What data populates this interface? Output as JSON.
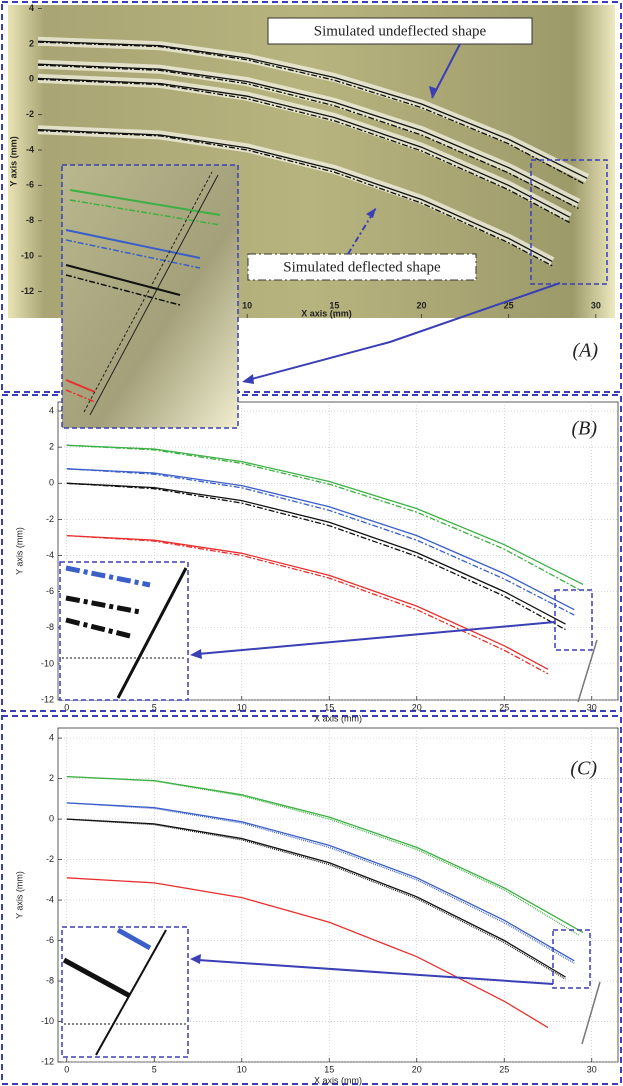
{
  "chart_data": [
    {
      "type": "line",
      "label": "(A)",
      "xlabel": "X axis (mm)",
      "ylabel": "Y axis (mm)",
      "xlim": [
        -2,
        31.1
      ],
      "ylim": [
        -13.5,
        4.2
      ],
      "xticks": [
        10,
        15,
        20,
        25,
        30
      ],
      "yticks": [
        4,
        2,
        0,
        -2,
        -4,
        -6,
        -8,
        -10,
        -12
      ],
      "grid": false,
      "annotations": [
        "Simulated undeflected shape",
        "Simulated deflected shape"
      ],
      "series": [
        {
          "color": "#111111",
          "dash": "none",
          "x": [
            -2,
            5,
            10,
            15,
            20,
            25,
            29.5
          ],
          "values": [
            2.15,
            1.9,
            1.2,
            0.1,
            -1.4,
            -3.4,
            -5.6
          ]
        },
        {
          "color": "#111111",
          "dash": "6,2,2,2",
          "x": [
            -2,
            5,
            10,
            15,
            20,
            25,
            29.3
          ],
          "values": [
            2.1,
            1.85,
            1.1,
            -0.05,
            -1.6,
            -3.65,
            -5.9
          ]
        },
        {
          "color": "#111111",
          "dash": "none",
          "x": [
            -2,
            5,
            10,
            15,
            20,
            25,
            29
          ],
          "values": [
            0.85,
            0.57,
            -0.13,
            -1.3,
            -2.9,
            -5.0,
            -7.0
          ]
        },
        {
          "color": "#111111",
          "dash": "6,2,2,2",
          "x": [
            -2,
            5,
            10,
            15,
            20,
            25,
            29
          ],
          "values": [
            0.8,
            0.5,
            -0.25,
            -1.5,
            -3.15,
            -5.3,
            -7.3
          ]
        },
        {
          "color": "#111111",
          "dash": "none",
          "x": [
            -2,
            5,
            10,
            15,
            20,
            25,
            28.5
          ],
          "values": [
            0.05,
            -0.24,
            -0.96,
            -2.16,
            -3.84,
            -6.0,
            -7.8
          ]
        },
        {
          "color": "#111111",
          "dash": "6,2,2,2",
          "x": [
            -2,
            5,
            10,
            15,
            20,
            25,
            28.5
          ],
          "values": [
            0,
            -0.3,
            -1.1,
            -2.35,
            -4.05,
            -6.25,
            -8.1
          ]
        },
        {
          "color": "#111111",
          "dash": "none",
          "x": [
            -2,
            5,
            10,
            15,
            20,
            25,
            27.5
          ],
          "values": [
            -2.85,
            -3.15,
            -3.88,
            -5.1,
            -6.8,
            -9.0,
            -10.3
          ]
        },
        {
          "color": "#111111",
          "dash": "6,2,2,2",
          "x": [
            -2,
            5,
            10,
            15,
            20,
            25,
            27.5
          ],
          "values": [
            -2.9,
            -3.2,
            -4.0,
            -5.25,
            -7.0,
            -9.25,
            -10.55
          ]
        }
      ]
    },
    {
      "type": "line",
      "label": "(B)",
      "xlabel": "X axis (mm)",
      "ylabel": "Y axis (mm)",
      "xlim": [
        -0.5,
        31.5
      ],
      "ylim": [
        -12,
        4.5
      ],
      "xticks": [
        0,
        5,
        10,
        15,
        20,
        25,
        30
      ],
      "yticks": [
        4,
        2,
        0,
        -2,
        -4,
        -6,
        -8,
        -10,
        -12
      ],
      "grid": true,
      "series": [
        {
          "color": "#3cb043",
          "dash": "none",
          "x": [
            0,
            5,
            10,
            15,
            20,
            25,
            29.5
          ],
          "values": [
            2.1,
            1.9,
            1.2,
            0.1,
            -1.4,
            -3.4,
            -5.6
          ]
        },
        {
          "color": "#3cb043",
          "dash": "6,2,2,2",
          "x": [
            0,
            5,
            10,
            15,
            20,
            25,
            29.3
          ],
          "values": [
            2.1,
            1.85,
            1.1,
            -0.05,
            -1.6,
            -3.65,
            -5.9
          ]
        },
        {
          "color": "#3a5fc8",
          "dash": "none",
          "x": [
            0,
            5,
            10,
            15,
            20,
            25,
            29
          ],
          "values": [
            0.8,
            0.57,
            -0.13,
            -1.3,
            -2.9,
            -5.0,
            -7.0
          ]
        },
        {
          "color": "#3a5fc8",
          "dash": "6,2,2,2",
          "x": [
            0,
            5,
            10,
            15,
            20,
            25,
            29
          ],
          "values": [
            0.8,
            0.5,
            -0.25,
            -1.5,
            -3.15,
            -5.3,
            -7.3
          ]
        },
        {
          "color": "#111111",
          "dash": "none",
          "x": [
            0,
            5,
            10,
            15,
            20,
            25,
            28.5
          ],
          "values": [
            0,
            -0.24,
            -0.96,
            -2.16,
            -3.84,
            -6.0,
            -7.8
          ]
        },
        {
          "color": "#111111",
          "dash": "6,2,2,2",
          "x": [
            0,
            5,
            10,
            15,
            20,
            25,
            28.5
          ],
          "values": [
            0,
            -0.3,
            -1.1,
            -2.35,
            -4.05,
            -6.25,
            -8.1
          ]
        },
        {
          "color": "#e8312e",
          "dash": "none",
          "x": [
            0,
            5,
            10,
            15,
            20,
            25,
            27.5
          ],
          "values": [
            -2.9,
            -3.15,
            -3.88,
            -5.1,
            -6.8,
            -9.0,
            -10.3
          ]
        },
        {
          "color": "#e8312e",
          "dash": "6,2,2,2",
          "x": [
            0,
            5,
            10,
            15,
            20,
            25,
            27.5
          ],
          "values": [
            -2.9,
            -3.2,
            -4.0,
            -5.25,
            -7.0,
            -9.25,
            -10.55
          ]
        }
      ]
    },
    {
      "type": "line",
      "label": "(C)",
      "xlabel": "X axis (mm)",
      "ylabel": "Y axis (mm)",
      "xlim": [
        -0.5,
        31.5
      ],
      "ylim": [
        -12,
        4.5
      ],
      "xticks": [
        0,
        5,
        10,
        15,
        20,
        25,
        30
      ],
      "yticks": [
        4,
        2,
        0,
        -2,
        -4,
        -6,
        -8,
        -10,
        -12
      ],
      "grid": true,
      "series": [
        {
          "color": "#3cb043",
          "dash": "none",
          "x": [
            0,
            5,
            10,
            15,
            20,
            25,
            29.5
          ],
          "values": [
            2.1,
            1.9,
            1.2,
            0.1,
            -1.4,
            -3.4,
            -5.6
          ]
        },
        {
          "color": "#3cb043",
          "dash": "1,1",
          "x": [
            0,
            5,
            10,
            15,
            20,
            25,
            29.3
          ],
          "values": [
            2.1,
            1.88,
            1.15,
            0.0,
            -1.5,
            -3.5,
            -5.75
          ]
        },
        {
          "color": "#3a5fc8",
          "dash": "none",
          "x": [
            0,
            5,
            10,
            15,
            20,
            25,
            29
          ],
          "values": [
            0.8,
            0.57,
            -0.13,
            -1.3,
            -2.9,
            -5.0,
            -7.0
          ]
        },
        {
          "color": "#3a5fc8",
          "dash": "1,1",
          "x": [
            0,
            5,
            10,
            15,
            20,
            25,
            29
          ],
          "values": [
            0.8,
            0.53,
            -0.2,
            -1.4,
            -3.0,
            -5.12,
            -7.12
          ]
        },
        {
          "color": "#111111",
          "dash": "none",
          "x": [
            0,
            5,
            10,
            15,
            20,
            25,
            28.5
          ],
          "values": [
            0,
            -0.24,
            -0.96,
            -2.16,
            -3.84,
            -6.0,
            -7.8
          ]
        },
        {
          "color": "#111111",
          "dash": "1,1",
          "x": [
            0,
            5,
            10,
            15,
            20,
            25,
            28.5
          ],
          "values": [
            0,
            -0.27,
            -1.03,
            -2.25,
            -3.93,
            -6.1,
            -7.9
          ]
        },
        {
          "color": "#e8312e",
          "dash": "none",
          "x": [
            0,
            5,
            10,
            15,
            20,
            25,
            27.5
          ],
          "values": [
            -2.9,
            -3.15,
            -3.88,
            -5.1,
            -6.8,
            -9.0,
            -10.3
          ]
        }
      ]
    }
  ]
}
